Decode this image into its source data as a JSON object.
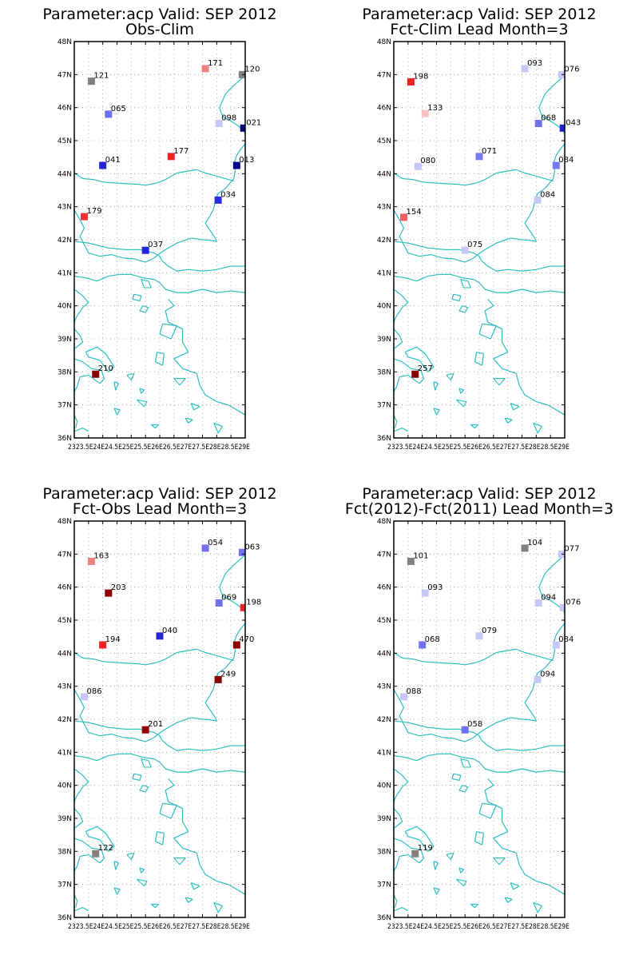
{
  "figure": {
    "panels": [
      {
        "id": "obs-clim",
        "title_line1": "Parameter:acp Valid: SEP 2012",
        "title_line2": "Obs-Clim",
        "stations": [
          {
            "lon": 23.6,
            "lat": 46.8,
            "label": "121",
            "color": "#808080"
          },
          {
            "lon": 24.2,
            "lat": 45.8,
            "label": "065",
            "color": "#6e6ef0"
          },
          {
            "lon": 24.0,
            "lat": 44.25,
            "label": "041",
            "color": "#2424d0"
          },
          {
            "lon": 23.35,
            "lat": 42.7,
            "label": "179",
            "color": "#f03232"
          },
          {
            "lon": 25.5,
            "lat": 41.68,
            "label": "037",
            "color": "#2424d8"
          },
          {
            "lon": 26.4,
            "lat": 44.52,
            "label": "177",
            "color": "#ee2424"
          },
          {
            "lon": 27.6,
            "lat": 47.18,
            "label": "171",
            "color": "#f08080"
          },
          {
            "lon": 28.9,
            "lat": 47.0,
            "label": "120",
            "color": "#808080"
          },
          {
            "lon": 28.08,
            "lat": 45.52,
            "label": "098",
            "color": "#c8c8f8"
          },
          {
            "lon": 28.95,
            "lat": 45.38,
            "label": "021",
            "color": "#000070"
          },
          {
            "lon": 28.7,
            "lat": 44.25,
            "label": "013",
            "color": "#00008c"
          },
          {
            "lon": 28.05,
            "lat": 43.2,
            "label": "034",
            "color": "#2a2ae0"
          },
          {
            "lon": 23.75,
            "lat": 37.93,
            "label": "210",
            "color": "#8c0000"
          }
        ]
      },
      {
        "id": "fct-clim",
        "title_line1": "Parameter:acp Valid: SEP 2012",
        "title_line2": "Fct-Clim Lead Month=3",
        "stations": [
          {
            "lon": 23.6,
            "lat": 46.78,
            "label": "198",
            "color": "#ee2020"
          },
          {
            "lon": 24.1,
            "lat": 45.82,
            "label": "133",
            "color": "#f8c0c0"
          },
          {
            "lon": 23.85,
            "lat": 44.22,
            "label": "080",
            "color": "#c8c8f8"
          },
          {
            "lon": 23.35,
            "lat": 42.68,
            "label": "154",
            "color": "#f06060"
          },
          {
            "lon": 25.5,
            "lat": 41.68,
            "label": "075",
            "color": "#c8c8f8"
          },
          {
            "lon": 26.0,
            "lat": 44.52,
            "label": "071",
            "color": "#7a7af0"
          },
          {
            "lon": 27.6,
            "lat": 47.18,
            "label": "093",
            "color": "#c8c8f8"
          },
          {
            "lon": 28.9,
            "lat": 47.0,
            "label": "076",
            "color": "#c8c8f8"
          },
          {
            "lon": 28.08,
            "lat": 45.52,
            "label": "068",
            "color": "#7070f0"
          },
          {
            "lon": 28.95,
            "lat": 45.38,
            "label": "043",
            "color": "#2020d8"
          },
          {
            "lon": 28.7,
            "lat": 44.25,
            "label": "084",
            "color": "#7a7af0"
          },
          {
            "lon": 28.05,
            "lat": 43.2,
            "label": "084",
            "color": "#c8c8f8"
          },
          {
            "lon": 23.75,
            "lat": 37.93,
            "label": "257",
            "color": "#8c0000"
          }
        ]
      },
      {
        "id": "fct-obs",
        "title_line1": "Parameter:acp Valid: SEP 2012",
        "title_line2": "Fct-Obs Lead Month=3",
        "stations": [
          {
            "lon": 23.6,
            "lat": 46.78,
            "label": "163",
            "color": "#f08080"
          },
          {
            "lon": 24.2,
            "lat": 45.82,
            "label": "203",
            "color": "#8c0000"
          },
          {
            "lon": 24.0,
            "lat": 44.25,
            "label": "194",
            "color": "#ee2020"
          },
          {
            "lon": 23.35,
            "lat": 42.68,
            "label": "086",
            "color": "#c8c8f8"
          },
          {
            "lon": 25.5,
            "lat": 41.68,
            "label": "201",
            "color": "#8c0000"
          },
          {
            "lon": 26.0,
            "lat": 44.52,
            "label": "040",
            "color": "#2424d8"
          },
          {
            "lon": 27.6,
            "lat": 47.18,
            "label": "054",
            "color": "#7070f0"
          },
          {
            "lon": 28.9,
            "lat": 47.05,
            "label": "063",
            "color": "#7070f0"
          },
          {
            "lon": 28.08,
            "lat": 45.52,
            "label": "069",
            "color": "#7070f0"
          },
          {
            "lon": 28.95,
            "lat": 45.38,
            "label": "198",
            "color": "#ee2020"
          },
          {
            "lon": 28.7,
            "lat": 44.25,
            "label": "470",
            "color": "#8c0000"
          },
          {
            "lon": 28.05,
            "lat": 43.2,
            "label": "249",
            "color": "#8c0000"
          },
          {
            "lon": 23.75,
            "lat": 37.93,
            "label": "122",
            "color": "#808080"
          }
        ]
      },
      {
        "id": "fct-diff",
        "title_line1": "Parameter:acp Valid: SEP 2012",
        "title_line2": "Fct(2012)-Fct(2011) Lead Month=3",
        "stations": [
          {
            "lon": 23.6,
            "lat": 46.78,
            "label": "101",
            "color": "#808080"
          },
          {
            "lon": 24.1,
            "lat": 45.82,
            "label": "093",
            "color": "#c8c8f8"
          },
          {
            "lon": 24.0,
            "lat": 44.25,
            "label": "068",
            "color": "#7070f0"
          },
          {
            "lon": 23.35,
            "lat": 42.68,
            "label": "088",
            "color": "#c8c8f8"
          },
          {
            "lon": 25.5,
            "lat": 41.68,
            "label": "058",
            "color": "#7070f0"
          },
          {
            "lon": 26.0,
            "lat": 44.52,
            "label": "079",
            "color": "#c8c8f8"
          },
          {
            "lon": 27.6,
            "lat": 47.18,
            "label": "104",
            "color": "#808080"
          },
          {
            "lon": 28.9,
            "lat": 47.0,
            "label": "077",
            "color": "#c8c8f8"
          },
          {
            "lon": 28.08,
            "lat": 45.52,
            "label": "094",
            "color": "#c8c8f8"
          },
          {
            "lon": 28.95,
            "lat": 45.38,
            "label": "076",
            "color": "#c8c8f8"
          },
          {
            "lon": 28.7,
            "lat": 44.25,
            "label": "084",
            "color": "#c8c8f8"
          },
          {
            "lon": 28.05,
            "lat": 43.2,
            "label": "094",
            "color": "#c8c8f8"
          },
          {
            "lon": 23.75,
            "lat": 37.93,
            "label": "119",
            "color": "#808080"
          }
        ]
      }
    ],
    "y_ticks": [
      "36N",
      "37N",
      "38N",
      "39N",
      "40N",
      "41N",
      "42N",
      "43N",
      "44N",
      "45N",
      "46N",
      "47N",
      "48N"
    ],
    "x_ticks": [
      "23E",
      "23.5E",
      "24E",
      "24.5E",
      "25E",
      "25.5E",
      "26E",
      "26.5E",
      "27E",
      "27.5E",
      "28E",
      "28.5E",
      "29E"
    ],
    "x_axis_string": "2323.5E24E24.5E25E25.5E26E26.5E27E27.5E28E28.5E29E",
    "lon_range": [
      23,
      29
    ],
    "lat_range": [
      36,
      48
    ],
    "coast_color": "#2ebfbf"
  }
}
